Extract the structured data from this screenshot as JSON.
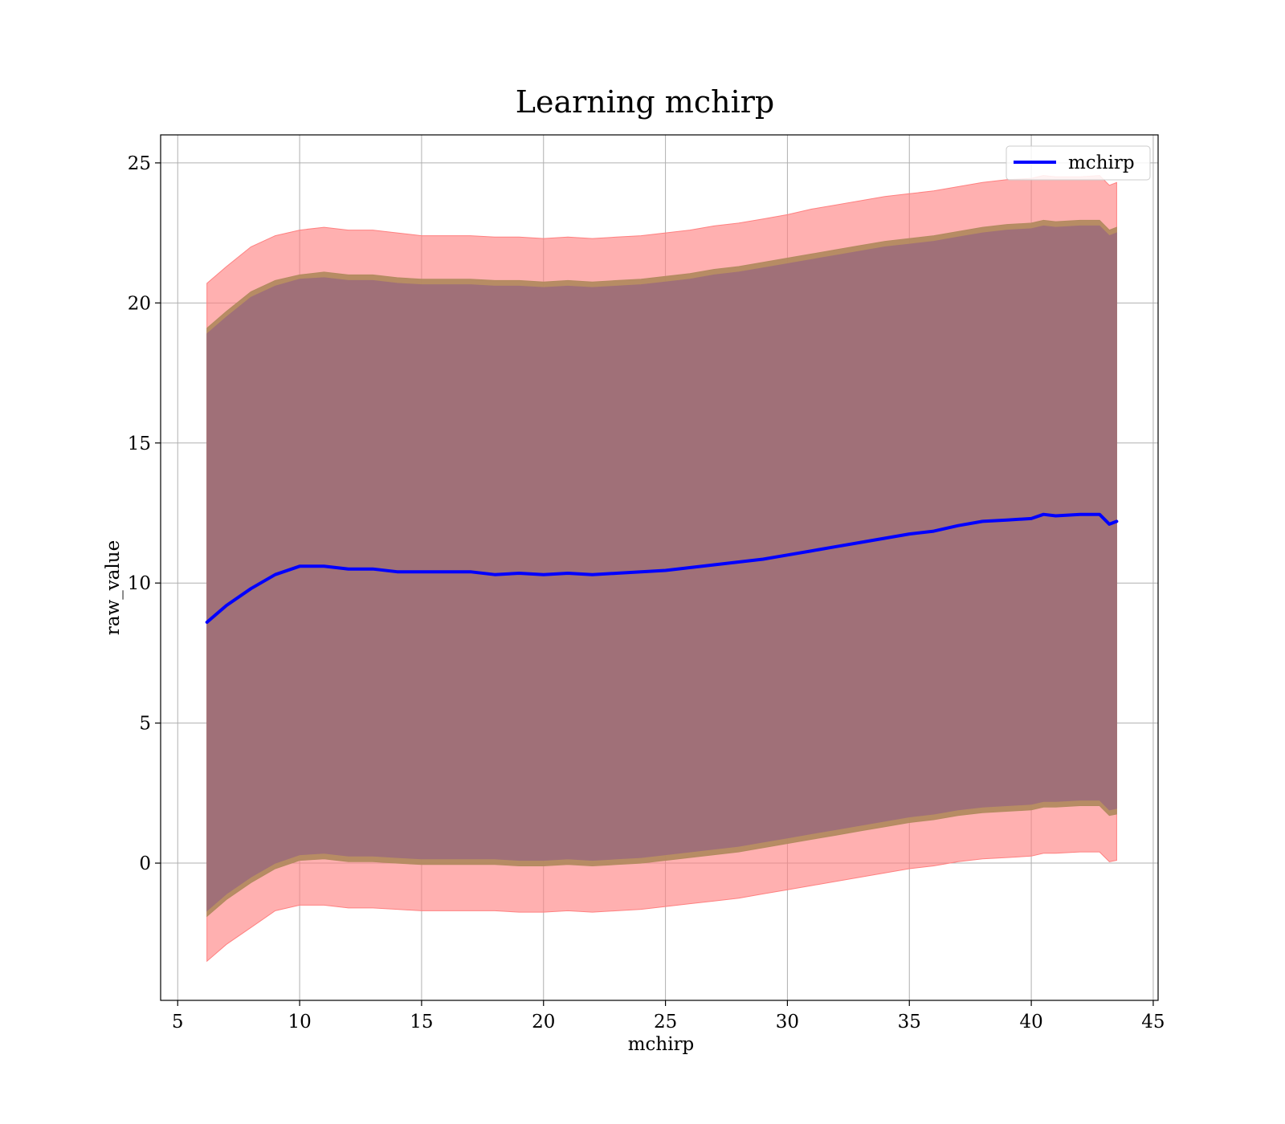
{
  "chart_data": {
    "type": "area",
    "title": "Learning mchirp",
    "xlabel": "mchirp",
    "ylabel": "raw_value",
    "xlim": [
      4.3,
      45.2
    ],
    "ylim": [
      -4.9,
      26.0
    ],
    "xticks": [
      5,
      10,
      15,
      20,
      25,
      30,
      35,
      40,
      45
    ],
    "yticks": [
      0,
      5,
      10,
      15,
      20,
      25
    ],
    "grid": true,
    "legend": {
      "placement": "top-right",
      "entries": [
        {
          "name": "mchirp",
          "color": "#0000ff"
        }
      ]
    },
    "colors": {
      "line": "#0000ff",
      "outer_band": "#ff8080",
      "middle_band": "#b38a60",
      "inner_band": "#a07078"
    },
    "x": [
      6.2,
      7,
      8,
      9,
      10,
      11,
      12,
      13,
      14,
      15,
      16,
      17,
      18,
      19,
      20,
      21,
      22,
      23,
      24,
      25,
      26,
      27,
      28,
      29,
      30,
      31,
      32,
      33,
      34,
      35,
      36,
      37,
      38,
      39,
      40,
      40.5,
      41,
      42,
      42.8,
      43.2,
      43.5
    ],
    "series": [
      {
        "name": "mchirp",
        "role": "mean",
        "values": [
          8.6,
          9.2,
          9.8,
          10.3,
          10.6,
          10.6,
          10.5,
          10.5,
          10.4,
          10.4,
          10.4,
          10.4,
          10.3,
          10.35,
          10.3,
          10.35,
          10.3,
          10.35,
          10.4,
          10.45,
          10.55,
          10.65,
          10.75,
          10.85,
          11.0,
          11.15,
          11.3,
          11.45,
          11.6,
          11.75,
          11.85,
          12.05,
          12.2,
          12.25,
          12.3,
          12.45,
          12.4,
          12.45,
          12.45,
          12.1,
          12.2
        ]
      },
      {
        "name": "",
        "role": "outer_band",
        "upper": [
          20.7,
          21.3,
          22.0,
          22.4,
          22.6,
          22.7,
          22.6,
          22.6,
          22.5,
          22.4,
          22.4,
          22.4,
          22.35,
          22.35,
          22.3,
          22.35,
          22.3,
          22.35,
          22.4,
          22.5,
          22.6,
          22.75,
          22.85,
          23.0,
          23.15,
          23.35,
          23.5,
          23.65,
          23.8,
          23.9,
          24.0,
          24.15,
          24.3,
          24.4,
          24.45,
          24.55,
          24.5,
          24.5,
          24.55,
          24.2,
          24.3
        ],
        "lower": [
          -3.5,
          -2.9,
          -2.3,
          -1.7,
          -1.5,
          -1.5,
          -1.6,
          -1.6,
          -1.65,
          -1.7,
          -1.7,
          -1.7,
          -1.7,
          -1.75,
          -1.75,
          -1.7,
          -1.75,
          -1.7,
          -1.65,
          -1.55,
          -1.45,
          -1.35,
          -1.25,
          -1.1,
          -0.95,
          -0.8,
          -0.65,
          -0.5,
          -0.35,
          -0.2,
          -0.1,
          0.05,
          0.15,
          0.2,
          0.25,
          0.35,
          0.35,
          0.4,
          0.4,
          0.05,
          0.1
        ]
      },
      {
        "name": "",
        "role": "middle_band",
        "upper": [
          19.1,
          19.7,
          20.4,
          20.8,
          21.0,
          21.1,
          21.0,
          21.0,
          20.9,
          20.85,
          20.85,
          20.85,
          20.8,
          20.8,
          20.75,
          20.8,
          20.75,
          20.8,
          20.85,
          20.95,
          21.05,
          21.2,
          21.3,
          21.45,
          21.6,
          21.75,
          21.9,
          22.05,
          22.2,
          22.3,
          22.4,
          22.55,
          22.7,
          22.8,
          22.85,
          22.95,
          22.9,
          22.95,
          22.95,
          22.6,
          22.7
        ],
        "lower": [
          -1.9,
          -1.3,
          -0.7,
          -0.2,
          0.1,
          0.15,
          0.05,
          0.05,
          0.0,
          -0.05,
          -0.05,
          -0.05,
          -0.05,
          -0.1,
          -0.1,
          -0.05,
          -0.1,
          -0.05,
          0.0,
          0.1,
          0.2,
          0.3,
          0.4,
          0.55,
          0.7,
          0.85,
          1.0,
          1.15,
          1.3,
          1.45,
          1.55,
          1.7,
          1.8,
          1.85,
          1.9,
          2.0,
          2.0,
          2.05,
          2.05,
          1.7,
          1.75
        ]
      },
      {
        "name": "",
        "role": "inner_band",
        "upper": [
          18.9,
          19.5,
          20.2,
          20.6,
          20.85,
          20.9,
          20.8,
          20.8,
          20.7,
          20.65,
          20.65,
          20.65,
          20.6,
          20.6,
          20.55,
          20.6,
          20.55,
          20.6,
          20.65,
          20.75,
          20.85,
          21.0,
          21.1,
          21.25,
          21.4,
          21.55,
          21.7,
          21.85,
          22.0,
          22.1,
          22.2,
          22.35,
          22.5,
          22.6,
          22.65,
          22.75,
          22.7,
          22.75,
          22.75,
          22.4,
          22.5
        ],
        "lower": [
          -1.7,
          -1.1,
          -0.5,
          0.0,
          0.3,
          0.35,
          0.25,
          0.25,
          0.2,
          0.15,
          0.15,
          0.15,
          0.15,
          0.1,
          0.1,
          0.15,
          0.1,
          0.15,
          0.2,
          0.3,
          0.4,
          0.5,
          0.6,
          0.75,
          0.9,
          1.05,
          1.2,
          1.35,
          1.5,
          1.65,
          1.75,
          1.9,
          2.0,
          2.05,
          2.1,
          2.2,
          2.2,
          2.25,
          2.25,
          1.9,
          1.95
        ]
      }
    ]
  }
}
